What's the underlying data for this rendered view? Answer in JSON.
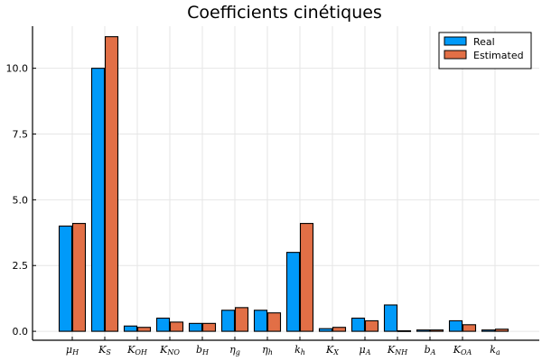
{
  "chart_data": {
    "type": "bar",
    "title": "Coefficients cinétiques",
    "xlabel": "",
    "ylabel": "",
    "categories": [
      {
        "base": "μ",
        "sub": "H"
      },
      {
        "base": "K",
        "sub": "S"
      },
      {
        "base": "K",
        "sub": "OH"
      },
      {
        "base": "K",
        "sub": "NO"
      },
      {
        "base": "b",
        "sub": "H"
      },
      {
        "base": "η",
        "sub": "g"
      },
      {
        "base": "η",
        "sub": "h"
      },
      {
        "base": "k",
        "sub": "h"
      },
      {
        "base": "K",
        "sub": "X"
      },
      {
        "base": "μ",
        "sub": "A"
      },
      {
        "base": "K",
        "sub": "NH"
      },
      {
        "base": "b",
        "sub": "A"
      },
      {
        "base": "K",
        "sub": "OA"
      },
      {
        "base": "k",
        "sub": "a"
      }
    ],
    "series": [
      {
        "name": "Real",
        "color": "#009af9",
        "values": [
          4.0,
          10.0,
          0.2,
          0.5,
          0.3,
          0.8,
          0.8,
          3.0,
          0.1,
          0.5,
          1.0,
          0.05,
          0.4,
          0.05
        ]
      },
      {
        "name": "Estimated",
        "color": "#e26f46",
        "values": [
          4.1,
          11.2,
          0.15,
          0.35,
          0.3,
          0.9,
          0.7,
          4.1,
          0.15,
          0.4,
          0.02,
          0.05,
          0.25,
          0.08
        ]
      }
    ],
    "yticks": [
      0.0,
      2.5,
      5.0,
      7.5,
      10.0
    ],
    "ytick_labels": [
      "0.0",
      "2.5",
      "5.0",
      "7.5",
      "10.0"
    ],
    "ylim": [
      -0.34,
      11.6
    ],
    "grid": true,
    "legend_position": "top-right"
  }
}
